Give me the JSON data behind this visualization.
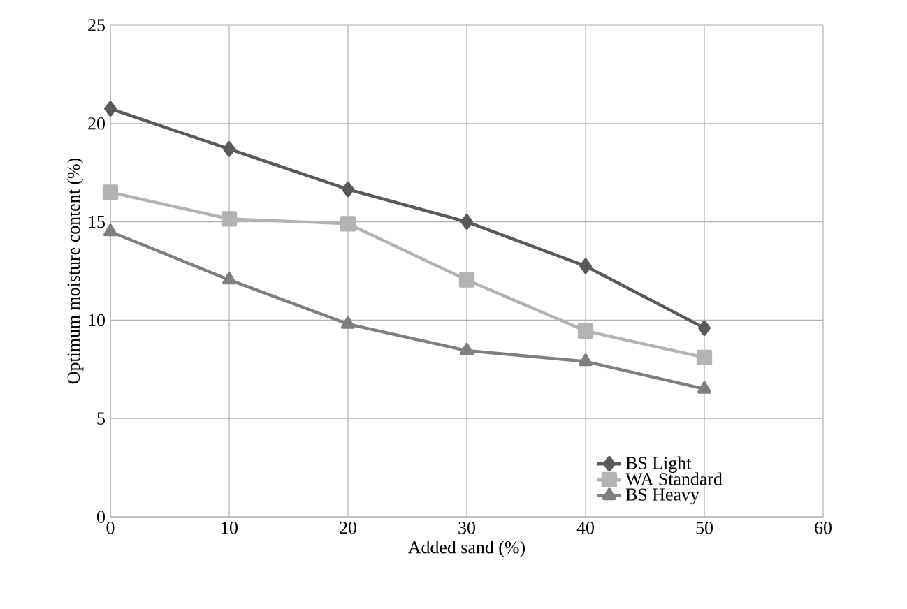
{
  "chart_data": {
    "type": "line",
    "xlabel": "Added sand (%)",
    "ylabel": "Optimum moisture content (%)",
    "x": [
      0,
      10,
      20,
      30,
      40,
      50
    ],
    "series": [
      {
        "name": "BS Light",
        "color": "#595959",
        "marker": "diamond",
        "values": [
          20.75,
          18.7,
          16.65,
          15.0,
          12.75,
          9.6
        ]
      },
      {
        "name": "WA Standard",
        "color": "#b3b3b3",
        "marker": "square",
        "values": [
          16.5,
          15.15,
          14.9,
          12.05,
          9.45,
          8.1
        ]
      },
      {
        "name": "BS Heavy",
        "color": "#7f7f7f",
        "marker": "triangle",
        "values": [
          14.5,
          12.05,
          9.8,
          8.45,
          7.9,
          6.5
        ]
      }
    ],
    "xlim": [
      0,
      60
    ],
    "xticks": [
      0,
      10,
      20,
      30,
      40,
      50,
      60
    ],
    "ylim": [
      0,
      25
    ],
    "yticks": [
      0,
      5,
      10,
      15,
      20,
      25
    ],
    "grid": true,
    "legend": "bottom right",
    "line_style": "solid"
  }
}
